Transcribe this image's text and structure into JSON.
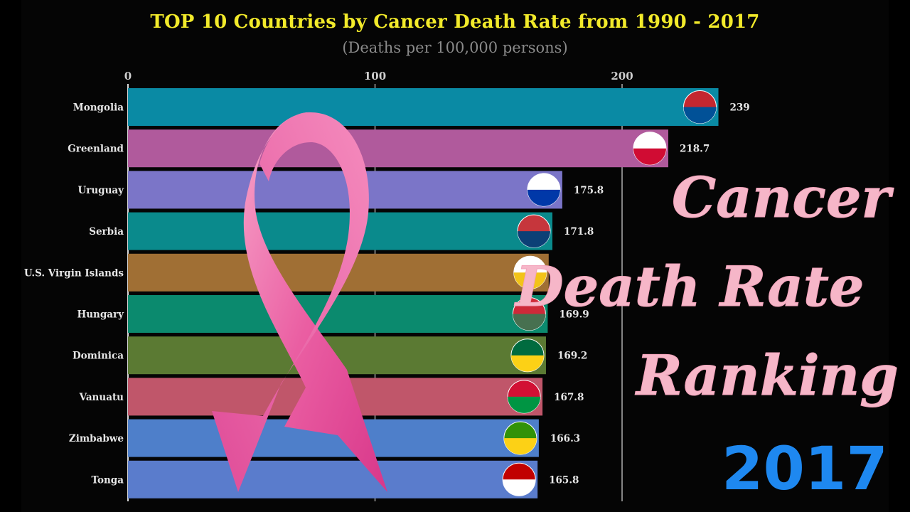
{
  "header": {
    "title": "TOP 10 Countries by Cancer Death Rate from 1990 - 2017",
    "subtitle": "(Deaths per 100,000 persons)"
  },
  "overlay": {
    "words": [
      "Cancer",
      "Death Rate",
      "Ranking"
    ],
    "year": "2017",
    "ribbon_icon": "pink-awareness-ribbon"
  },
  "chart_data": {
    "type": "bar",
    "orientation": "horizontal",
    "title": "TOP 10 Countries by Cancer Death Rate from 1990 - 2017",
    "subtitle": "(Deaths per 100,000 persons)",
    "xlim": [
      0,
      240
    ],
    "x_ticks": [
      0,
      100,
      200
    ],
    "grid": true,
    "categories": [
      "Mongolia",
      "Greenland",
      "Uruguay",
      "Serbia",
      "U.S. Virgin Islands",
      "Hungary",
      "Dominica",
      "Vanuatu",
      "Zimbabwe",
      "Tonga"
    ],
    "values": [
      239,
      218.7,
      175.8,
      171.8,
      170.3,
      169.9,
      169.2,
      167.8,
      166.3,
      165.8
    ],
    "value_labels": [
      "239",
      "218.7",
      "175.8",
      "171.8",
      "",
      "169.9",
      "169.2",
      "167.8",
      "166.3",
      "165.8"
    ],
    "colors": [
      "#0a8aa4",
      "#b05a9c",
      "#7b75c8",
      "#0a8a8c",
      "#a06f34",
      "#0b8a6e",
      "#5b7a33",
      "#c0566a",
      "#4e7fca",
      "#5a7ccc"
    ],
    "flag_icons": [
      "mongolia-flag-icon",
      "greenland-flag-icon",
      "uruguay-flag-icon",
      "serbia-flag-icon",
      "usvi-flag-icon",
      "hungary-flag-icon",
      "dominica-flag-icon",
      "vanuatu-flag-icon",
      "zimbabwe-flag-icon",
      "tonga-flag-icon"
    ]
  }
}
